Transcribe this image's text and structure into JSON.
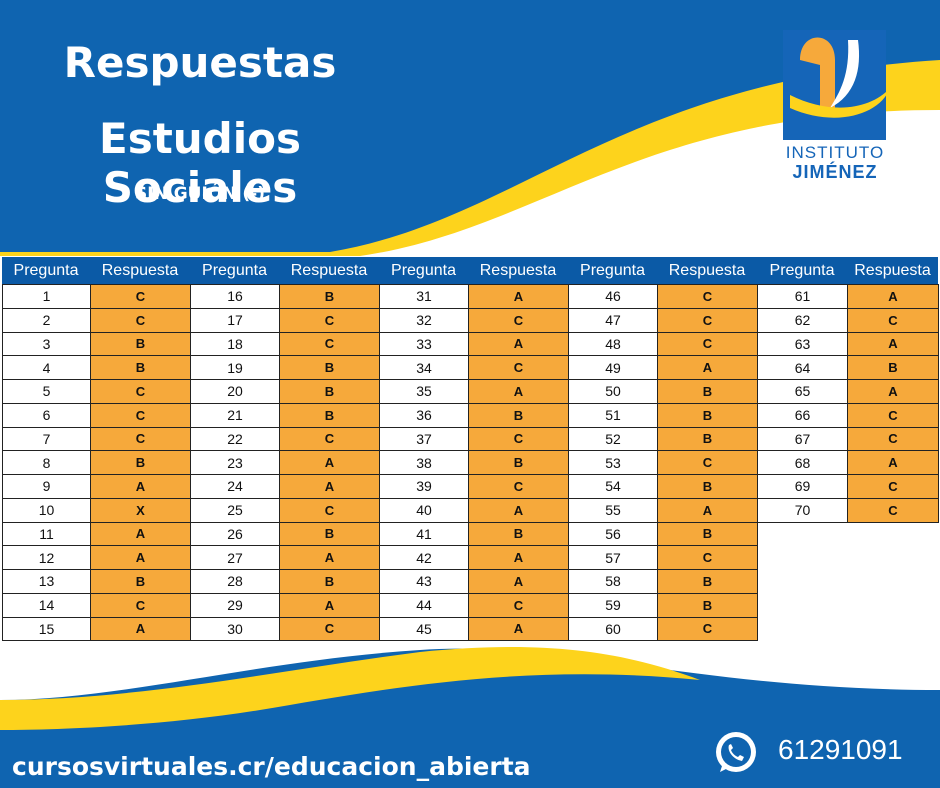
{
  "header": {
    "title_line1": "Respuestas",
    "title_line2": "Estudios Sociales",
    "subtitle": "SIN GUIÓN (-)"
  },
  "logo": {
    "line1": "INSTITUTO",
    "line2": "JIMÉNEZ"
  },
  "table": {
    "groups": [
      {
        "columns": [
          "Pregunta",
          "Respuesta"
        ],
        "rows": [
          [
            1,
            "C"
          ],
          [
            2,
            "C"
          ],
          [
            3,
            "B"
          ],
          [
            4,
            "B"
          ],
          [
            5,
            "C"
          ],
          [
            6,
            "C"
          ],
          [
            7,
            "C"
          ],
          [
            8,
            "B"
          ],
          [
            9,
            "A"
          ],
          [
            10,
            "X"
          ],
          [
            11,
            "A"
          ],
          [
            12,
            "A"
          ],
          [
            13,
            "B"
          ],
          [
            14,
            "C"
          ],
          [
            15,
            "A"
          ]
        ]
      },
      {
        "columns": [
          "Pregunta",
          "Respuesta"
        ],
        "rows": [
          [
            16,
            "B"
          ],
          [
            17,
            "C"
          ],
          [
            18,
            "C"
          ],
          [
            19,
            "B"
          ],
          [
            20,
            "B"
          ],
          [
            21,
            "B"
          ],
          [
            22,
            "C"
          ],
          [
            23,
            "A"
          ],
          [
            24,
            "A"
          ],
          [
            25,
            "C"
          ],
          [
            26,
            "B"
          ],
          [
            27,
            "A"
          ],
          [
            28,
            "B"
          ],
          [
            29,
            "A"
          ],
          [
            30,
            "C"
          ]
        ]
      },
      {
        "columns": [
          "Pregunta",
          "Respuesta"
        ],
        "rows": [
          [
            31,
            "A"
          ],
          [
            32,
            "C"
          ],
          [
            33,
            "A"
          ],
          [
            34,
            "C"
          ],
          [
            35,
            "A"
          ],
          [
            36,
            "B"
          ],
          [
            37,
            "C"
          ],
          [
            38,
            "B"
          ],
          [
            39,
            "C"
          ],
          [
            40,
            "A"
          ],
          [
            41,
            "B"
          ],
          [
            42,
            "A"
          ],
          [
            43,
            "A"
          ],
          [
            44,
            "C"
          ],
          [
            45,
            "A"
          ]
        ]
      },
      {
        "columns": [
          "Pregunta",
          "Respuesta"
        ],
        "rows": [
          [
            46,
            "C"
          ],
          [
            47,
            "C"
          ],
          [
            48,
            "C"
          ],
          [
            49,
            "A"
          ],
          [
            50,
            "B"
          ],
          [
            51,
            "B"
          ],
          [
            52,
            "B"
          ],
          [
            53,
            "C"
          ],
          [
            54,
            "B"
          ],
          [
            55,
            "A"
          ],
          [
            56,
            "B"
          ],
          [
            57,
            "C"
          ],
          [
            58,
            "B"
          ],
          [
            59,
            "B"
          ],
          [
            60,
            "C"
          ]
        ]
      },
      {
        "columns": [
          "Pregunta",
          "Respuesta"
        ],
        "rows": [
          [
            61,
            "A"
          ],
          [
            62,
            "C"
          ],
          [
            63,
            "A"
          ],
          [
            64,
            "B"
          ],
          [
            65,
            "A"
          ],
          [
            66,
            "C"
          ],
          [
            67,
            "C"
          ],
          [
            68,
            "A"
          ],
          [
            69,
            "C"
          ],
          [
            70,
            "C"
          ]
        ]
      }
    ]
  },
  "footer": {
    "website": "cursosvirtuales.cr/educacion_abierta",
    "phone": "61291091"
  }
}
